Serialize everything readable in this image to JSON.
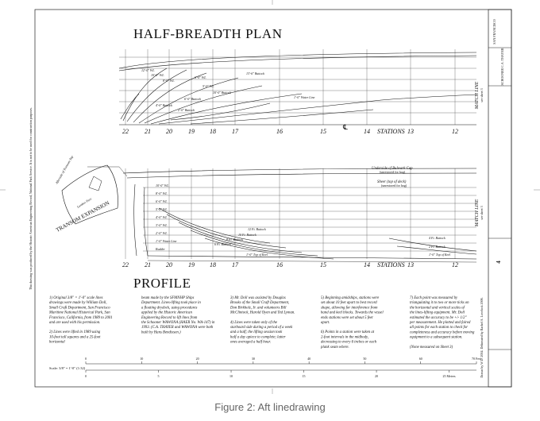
{
  "caption": "Figure 2: Aft linedrawing",
  "plan": {
    "title": "HALF-BREADTH PLAN",
    "stations": [
      "22",
      "21",
      "20",
      "19",
      "18",
      "17",
      "16",
      "15",
      "14",
      "13",
      "12"
    ],
    "stations_label": "STATIONS",
    "centerline_symbol": "℄",
    "match_line": "MATCH LINE",
    "match_sub": "see sheet 3",
    "buttock_labels": [
      "12'-0\" WL",
      "10'-0\" WL",
      "8'-0\" WL",
      "6'-0\" WL",
      "5'-0\" WL",
      "13'-6\" Buttock",
      "10'-0\" Buttock",
      "6'-0\" Buttock",
      "4'-0\" Buttock",
      "2'-0\" Buttock",
      "1'-0\" Water Line"
    ]
  },
  "profile": {
    "title": "PROFILE",
    "stations": [
      "22",
      "21",
      "20",
      "19",
      "18",
      "17",
      "16",
      "15",
      "14",
      "13",
      "12"
    ],
    "stations_label": "STATIONS",
    "match_line": "MATCH LINE",
    "match_sub": "see sheet 3",
    "bulwark_note": "Underside of Bulwark Cap",
    "bulwark_sub": "(unrestored for hog)",
    "sheer_note": "Sheer (top of deck)",
    "sheer_sub": "(unrestored for hog)",
    "wl_labels": [
      "10'-0\" WL",
      "8'-0\" WL",
      "6'-0\" WL",
      "5'-0\" WL",
      "4'-0\" WL",
      "3'-0\" WL",
      "2'-0\" WL",
      "1'-0\" Water Line",
      "Rudder"
    ],
    "buttock_labels": [
      "12 Ft. Buttock",
      "10 Ft. Buttock",
      "8 Ft. Buttock",
      "6 Ft. Buttock",
      "4 Ft. Buttock",
      "2 Ft. Buttock"
    ],
    "keel_label": "1'-0\" Top of Keel",
    "transom_label": "TRANSOM EXPANSION",
    "after_face": "Afterside of Transom Top",
    "lumber_port": "Lumber Port"
  },
  "notes": [
    "1) Original 3/8\" = 1'-0\" scale lines drawings were made by William Doll, Small Craft Department, San Francisco Maritime National Historical Park, San Francisco, California, from 1989 to 2001 and are used with his permission.",
    "2) Lines were lifted in 1989 using 10-foot tall squares and a 25-foot horizontal",
    "beam made by the SFMNHP Ships Department. Lines-lifting took place in a floating drydock, using procedures applied by the Historic American Engineering Record to lift lines from the Schooner WAWONA (HAER No. WA-147) in 1993. (C.A. THAYER and WAWONA were both built by Hans Bendixsen.)",
    "3) Mr. Doll was assisted by Douglas Brooks of the Small Craft Department, Don Birkholz, Jr. and volunteers Bill McClintock, Harold Oyen and Ted Lyman.",
    "4) Lines were taken only of the starboard side during a period of a week and a half; the lifting session took half a day apiece to complete; latter ones averaged a half hour.",
    "5) Beginning amidships, stations were set about 10 feet apart to best record shape, allowing for interference from hand and keel blocks. Towards the vessel ends stations were set about 5 feet apart.",
    "6) Points in a station were taken at 2-foot intervals in the midbody, decreasing to every 6 inches or each plank seam where.",
    "7) Each point was measured by triangulating it to two or more ticks on the horizontal and vertical scales of the lines-lifting equipment. Mr. Doll estimated the accuracy to be +/- 1/2\" per measurement. He plotted and faired all points for each station to check for completeness and accuracy before moving equipment to a subsequent station.",
    "(None measured on Sheet 3)"
  ],
  "scale": {
    "label": "Scale: 3/8\" = 1'-0\" (1:32)",
    "feet_ticks": [
      "0",
      "10",
      "20",
      "30",
      "40",
      "50",
      "60",
      "70 Feet"
    ],
    "meter_ticks": [
      "0",
      "5",
      "10",
      "15",
      "20",
      "25 Meters"
    ]
  },
  "title_block": {
    "vessel": "SCHOONER C.A. THAYER",
    "location": "SAN FRANCISCO",
    "sheet": "4"
  },
  "side_credit": "Drawn by W.D. 2004. Delineated by Rachel A. Lovelock 2006.",
  "side_note": "This drawing was produced by the Historic American Engineering Record, National Park Service. It is not to be used for construction purposes."
}
